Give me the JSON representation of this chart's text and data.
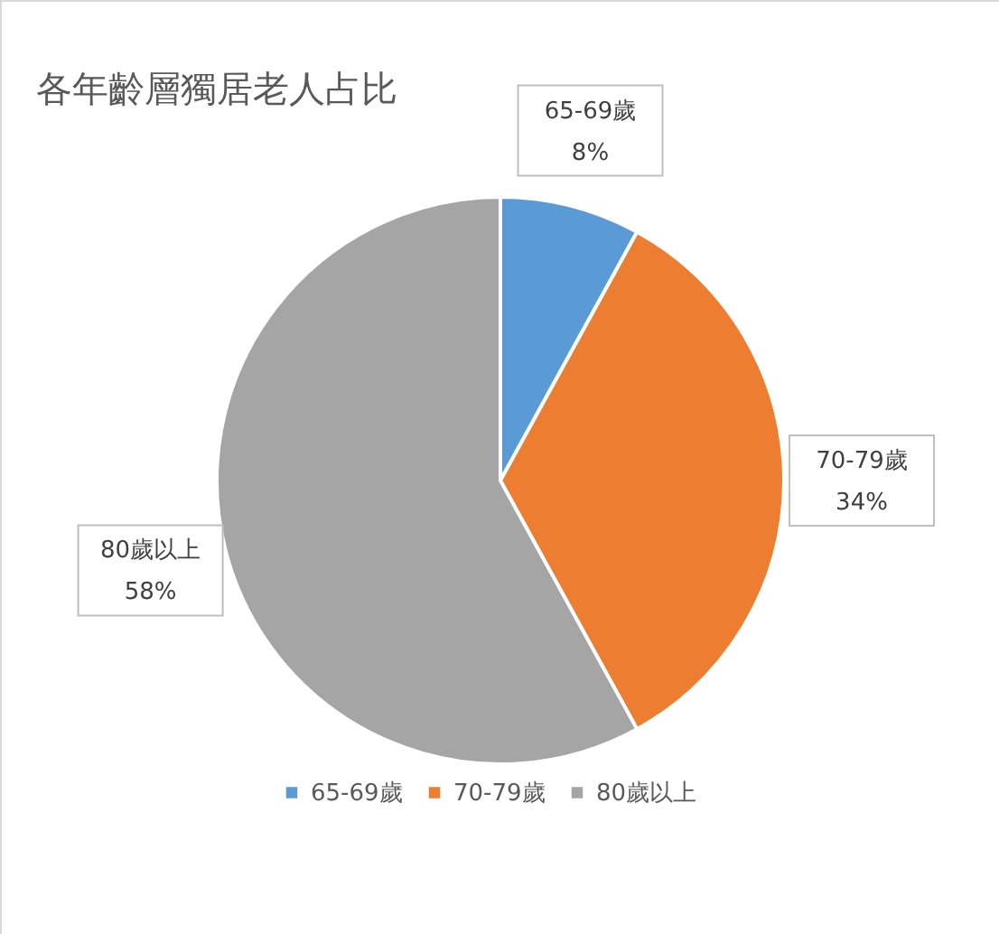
{
  "chart_data": {
    "type": "pie",
    "title": "各年齡層獨居老人占比",
    "categories": [
      "65-69歲",
      "70-79歲",
      "80歲以上"
    ],
    "values": [
      8,
      34,
      58
    ],
    "value_labels": [
      "8%",
      "34%",
      "58%"
    ],
    "colors": [
      "#5b9bd5",
      "#ed7d31",
      "#a5a5a5"
    ],
    "legend": "bottom"
  }
}
